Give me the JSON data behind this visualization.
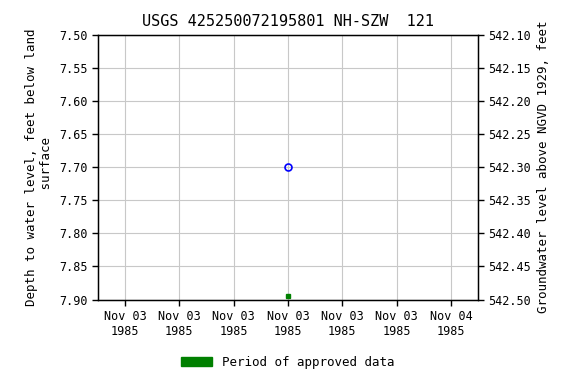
{
  "title": "USGS 425250072195801 NH-SZW  121",
  "ylabel_left": "Depth to water level, feet below land\n surface",
  "ylabel_right": "Groundwater level above NGVD 1929, feet",
  "ylim_left": [
    7.5,
    7.9
  ],
  "ylim_right": [
    542.1,
    542.5
  ],
  "yticks_left": [
    7.5,
    7.55,
    7.6,
    7.65,
    7.7,
    7.75,
    7.8,
    7.85,
    7.9
  ],
  "yticks_right": [
    542.5,
    542.45,
    542.4,
    542.35,
    542.3,
    542.25,
    542.2,
    542.15,
    542.1
  ],
  "data_blue_circle": {
    "date": "1985-11-03",
    "y": 7.7
  },
  "data_green_square": {
    "date": "1985-11-03",
    "y": 7.895
  },
  "x_start_num": -3,
  "x_end_num": 3,
  "data_x_num": 0,
  "xtick_nums": [
    -3,
    -2,
    -1,
    0,
    1,
    2,
    3
  ],
  "xtick_labels": [
    "Nov 03\n1985",
    "Nov 03\n1985",
    "Nov 03\n1985",
    "Nov 03\n1985",
    "Nov 03\n1985",
    "Nov 03\n1985",
    "Nov 04\n1985"
  ],
  "grid_color": "#c8c8c8",
  "background_color": "#ffffff",
  "legend_label": "Period of approved data",
  "legend_color": "#008000",
  "title_fontsize": 11,
  "axis_label_fontsize": 9,
  "tick_fontsize": 8.5
}
